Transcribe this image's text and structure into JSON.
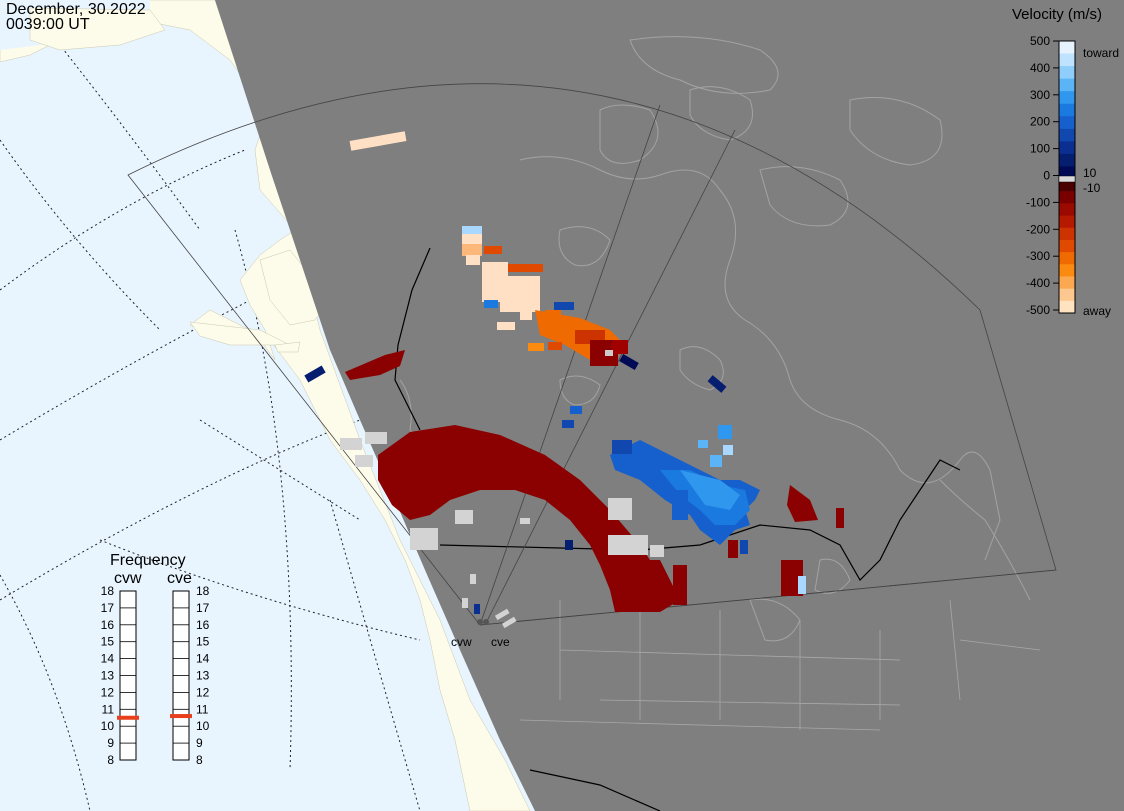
{
  "header": {
    "date": "December, 30.2022",
    "time": "0039:00 UT"
  },
  "legend": {
    "title": "Velocity (m/s)",
    "ticks": [
      "500",
      "400",
      "300",
      "200",
      "100",
      "0",
      "-100",
      "-200",
      "-300",
      "-400",
      "-500"
    ],
    "labels": {
      "toward": "toward",
      "away": "away",
      "plus_thresh": "10",
      "minus_thresh": "-10"
    },
    "colors_top_to_bottom": [
      "#e6f3ff",
      "#bfe2ff",
      "#8fcdfb",
      "#5ab4f5",
      "#2f97ee",
      "#1a7ae0",
      "#1560cc",
      "#1048b0",
      "#0a2f90",
      "#061e70",
      "#000a55"
    ],
    "colors_negative_top_to_bottom": [
      "#4a0000",
      "#7a0000",
      "#9a0a00",
      "#b51a00",
      "#cc3300",
      "#e04a00",
      "#ef6a00",
      "#fa8a10",
      "#fca850",
      "#fdc890",
      "#ffe2c0"
    ]
  },
  "frequency": {
    "title": "Frequency",
    "radars": [
      {
        "name": "cvw",
        "value_mhz": 10.5
      },
      {
        "name": "cve",
        "value_mhz": 10.6
      }
    ],
    "scale": [
      "18",
      "17",
      "16",
      "15",
      "14",
      "13",
      "12",
      "11",
      "10",
      "9",
      "8"
    ],
    "marker_color": "#e8401c"
  },
  "radars": [
    {
      "id": "cvw",
      "label": "cvw"
    },
    {
      "id": "cve",
      "label": "cve"
    }
  ],
  "colors": {
    "ocean": "#e8f5ff",
    "land_day": "#fdfbe9",
    "night": "#7f7f7f",
    "coast_night": "#a0a0a0"
  }
}
